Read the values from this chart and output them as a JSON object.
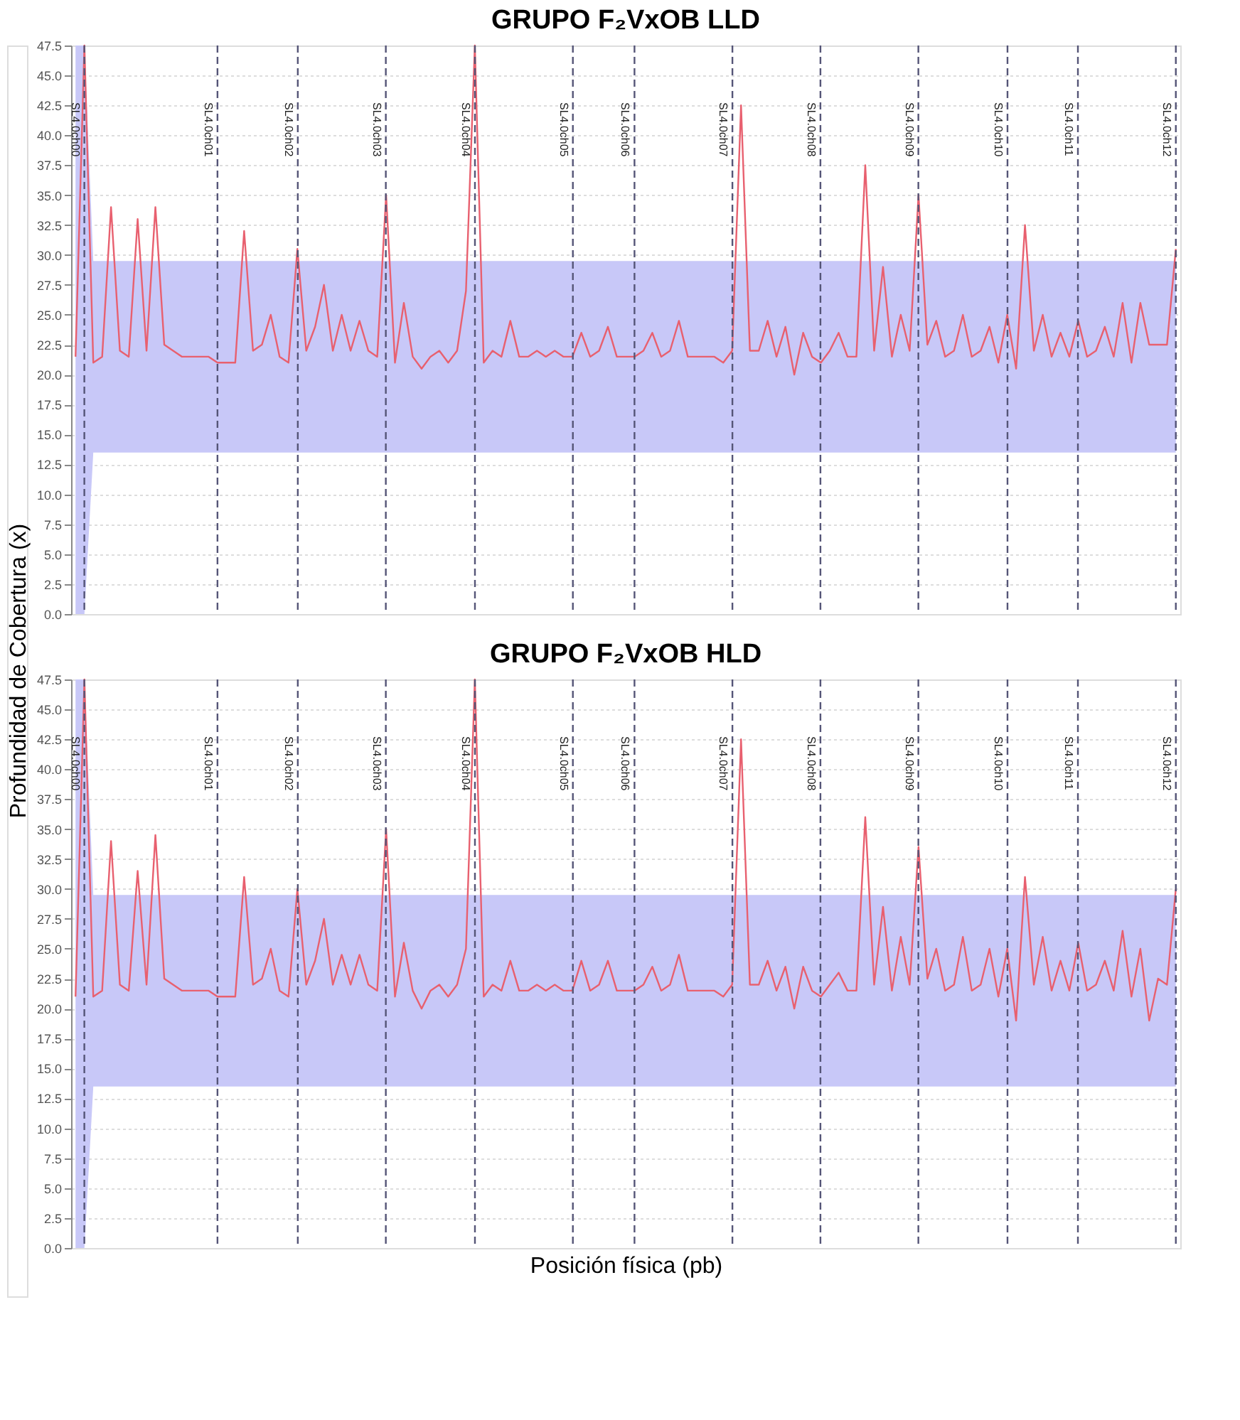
{
  "chart_data": [
    {
      "type": "line",
      "title": "GRUPO F₂VxOB LLD",
      "ylabel": "Profundidad de Cobertura (x)",
      "grid": "y",
      "tick_labels": "y",
      "categories": [
        null,
        null,
        null,
        null,
        null,
        null,
        null,
        null,
        null,
        null,
        null,
        null,
        null,
        null,
        null,
        null,
        null,
        null,
        null,
        null,
        null,
        null,
        null,
        null,
        null,
        null,
        null,
        null,
        null,
        null,
        null,
        null,
        null,
        null,
        null,
        null,
        null,
        null,
        null,
        null,
        null,
        null,
        null,
        null,
        null,
        null,
        null,
        null,
        null,
        null,
        null,
        null,
        null,
        null,
        null,
        null,
        null,
        null,
        null,
        null,
        null,
        null,
        null,
        null,
        null,
        null,
        null,
        null,
        null,
        null,
        null,
        null,
        null,
        null,
        null,
        null,
        null,
        null,
        null,
        null,
        null,
        null,
        null,
        null,
        null,
        null,
        null,
        null,
        null,
        null,
        null,
        null,
        null,
        null,
        null,
        null,
        null,
        null,
        null,
        null,
        null,
        null,
        null,
        null,
        null,
        null,
        null,
        null,
        null,
        null,
        null,
        null,
        null,
        null,
        null,
        null,
        null,
        null,
        null,
        null,
        null,
        null,
        null,
        null,
        null
      ],
      "ylim": [
        0,
        47.5
      ],
      "yticks": [
        {
          "value": 0,
          "label": "0.0"
        },
        {
          "value": 2.5,
          "label": "2.5"
        },
        {
          "value": 5,
          "label": "5.0"
        },
        {
          "value": 7.5,
          "label": "7.5"
        },
        {
          "value": 10,
          "label": "10.0"
        },
        {
          "value": 12.5,
          "label": "12.5"
        },
        {
          "value": 15,
          "label": "15.0"
        },
        {
          "value": 17.5,
          "label": "17.5"
        },
        {
          "value": 20,
          "label": "20.0"
        },
        {
          "value": 22.5,
          "label": "22.5"
        },
        {
          "value": 25,
          "label": "25.0"
        },
        {
          "value": 27.5,
          "label": "27.5"
        },
        {
          "value": 30,
          "label": "30.0"
        },
        {
          "value": 32.5,
          "label": "32.5"
        },
        {
          "value": 35,
          "label": "35.0"
        },
        {
          "value": 37.5,
          "label": "37.5"
        },
        {
          "value": 40,
          "label": "40.0"
        },
        {
          "value": 42.5,
          "label": "42.5"
        },
        {
          "value": 45,
          "label": "45.0"
        },
        {
          "value": 47.5,
          "label": "47.5"
        }
      ],
      "series": [
        {
          "color": "#e8606f",
          "values": [
            21.5,
            47.5,
            21,
            21.5,
            34,
            22,
            21.5,
            33,
            22,
            34,
            22.5,
            22,
            21.5,
            21.5,
            21.5,
            21.5,
            21,
            21,
            21,
            32,
            22,
            22.5,
            25,
            21.5,
            21,
            30.5,
            22,
            24,
            27.5,
            22,
            25,
            22,
            24.5,
            22,
            21.5,
            35,
            21,
            26,
            21.5,
            20.5,
            21.5,
            22,
            21,
            22,
            27,
            47.5,
            21,
            22,
            21.5,
            24.5,
            21.5,
            21.5,
            22,
            21.5,
            22,
            21.5,
            21.5,
            23.5,
            21.5,
            22,
            24,
            21.5,
            21.5,
            21.5,
            22,
            23.5,
            21.5,
            22,
            24.5,
            21.5,
            21.5,
            21.5,
            21.5,
            21,
            22,
            42.5,
            22,
            22,
            24.5,
            21.5,
            24,
            20,
            23.5,
            21.5,
            21,
            22,
            23.5,
            21.5,
            21.5,
            37.5,
            22,
            29,
            21.5,
            25,
            22,
            35,
            22.5,
            24.5,
            21.5,
            22,
            25,
            21.5,
            22,
            24,
            21,
            25,
            20.5,
            32.5,
            22,
            25,
            21.5,
            23.5,
            21.5,
            24.5,
            21.5,
            22,
            24,
            21.5,
            26,
            21,
            26,
            22.5,
            22.5,
            22.5,
            30.5
          ],
          "upper": [
            47.5,
            47.5,
            29.5,
            29.5,
            29.5,
            29.5,
            29.5,
            29.5,
            29.5,
            29.5,
            29.5,
            29.5,
            29.5,
            29.5,
            29.5,
            29.5,
            29.5,
            29.5,
            29.5,
            29.5,
            29.5,
            29.5,
            29.5,
            29.5,
            29.5,
            29.5,
            29.5,
            29.5,
            29.5,
            29.5,
            29.5,
            29.5,
            29.5,
            29.5,
            29.5,
            29.5,
            29.5,
            29.5,
            29.5,
            29.5,
            29.5,
            29.5,
            29.5,
            29.5,
            29.5,
            29.5,
            29.5,
            29.5,
            29.5,
            29.5,
            29.5,
            29.5,
            29.5,
            29.5,
            29.5,
            29.5,
            29.5,
            29.5,
            29.5,
            29.5,
            29.5,
            29.5,
            29.5,
            29.5,
            29.5,
            29.5,
            29.5,
            29.5,
            29.5,
            29.5,
            29.5,
            29.5,
            29.5,
            29.5,
            29.5,
            29.5,
            29.5,
            29.5,
            29.5,
            29.5,
            29.5,
            29.5,
            29.5,
            29.5,
            29.5,
            29.5,
            29.5,
            29.5,
            29.5,
            29.5,
            29.5,
            29.5,
            29.5,
            29.5,
            29.5,
            29.5,
            29.5,
            29.5,
            29.5,
            29.5,
            29.5,
            29.5,
            29.5,
            29.5,
            29.5,
            29.5,
            29.5,
            29.5,
            29.5,
            29.5,
            29.5,
            29.5,
            29.5,
            29.5,
            29.5,
            29.5,
            29.5,
            29.5,
            29.5,
            29.5,
            29.5,
            29.5,
            29.5,
            29.5,
            29.5
          ],
          "lower": [
            0,
            0,
            13.5,
            13.5,
            13.5,
            13.5,
            13.5,
            13.5,
            13.5,
            13.5,
            13.5,
            13.5,
            13.5,
            13.5,
            13.5,
            13.5,
            13.5,
            13.5,
            13.5,
            13.5,
            13.5,
            13.5,
            13.5,
            13.5,
            13.5,
            13.5,
            13.5,
            13.5,
            13.5,
            13.5,
            13.5,
            13.5,
            13.5,
            13.5,
            13.5,
            13.5,
            13.5,
            13.5,
            13.5,
            13.5,
            13.5,
            13.5,
            13.5,
            13.5,
            13.5,
            13.5,
            13.5,
            13.5,
            13.5,
            13.5,
            13.5,
            13.5,
            13.5,
            13.5,
            13.5,
            13.5,
            13.5,
            13.5,
            13.5,
            13.5,
            13.5,
            13.5,
            13.5,
            13.5,
            13.5,
            13.5,
            13.5,
            13.5,
            13.5,
            13.5,
            13.5,
            13.5,
            13.5,
            13.5,
            13.5,
            13.5,
            13.5,
            13.5,
            13.5,
            13.5,
            13.5,
            13.5,
            13.5,
            13.5,
            13.5,
            13.5,
            13.5,
            13.5,
            13.5,
            13.5,
            13.5,
            13.5,
            13.5,
            13.5,
            13.5,
            13.5,
            13.5,
            13.5,
            13.5,
            13.5,
            13.5,
            13.5,
            13.5,
            13.5,
            13.5,
            13.5,
            13.5,
            13.5,
            13.5,
            13.5,
            13.5,
            13.5,
            13.5,
            13.5,
            13.5,
            13.5,
            13.5,
            13.5,
            13.5,
            13.5,
            13.5,
            13.5,
            13.5,
            13.5,
            13.5
          ]
        }
      ],
      "annotations": [
        "SL4.0ch00",
        "SL4.0ch01",
        "SL4.0ch02",
        "SL4.0ch03",
        "SL4.0ch04",
        "SL4.0ch05",
        "SL4.0ch06",
        "SL4.0ch07",
        "SL4.0ch08",
        "SL4.0ch09",
        "SL4.0ch10",
        "SL4.0ch11",
        "SL4.0ch12"
      ]
    },
    {
      "type": "line",
      "title": "GRUPO F₂VxOB HLD",
      "xlabel": "Posición física (pb)",
      "grid": "y",
      "tick_labels": "y",
      "categories": [
        null,
        null,
        null,
        null,
        null,
        null,
        null,
        null,
        null,
        null,
        null,
        null,
        null,
        null,
        null,
        null,
        null,
        null,
        null,
        null,
        null,
        null,
        null,
        null,
        null,
        null,
        null,
        null,
        null,
        null,
        null,
        null,
        null,
        null,
        null,
        null,
        null,
        null,
        null,
        null,
        null,
        null,
        null,
        null,
        null,
        null,
        null,
        null,
        null,
        null,
        null,
        null,
        null,
        null,
        null,
        null,
        null,
        null,
        null,
        null,
        null,
        null,
        null,
        null,
        null,
        null,
        null,
        null,
        null,
        null,
        null,
        null,
        null,
        null,
        null,
        null,
        null,
        null,
        null,
        null,
        null,
        null,
        null,
        null,
        null,
        null,
        null,
        null,
        null,
        null,
        null,
        null,
        null,
        null,
        null,
        null,
        null,
        null,
        null,
        null,
        null,
        null,
        null,
        null,
        null,
        null,
        null,
        null,
        null,
        null,
        null,
        null,
        null,
        null,
        null,
        null,
        null,
        null,
        null,
        null,
        null,
        null,
        null,
        null,
        null
      ],
      "ylim": [
        0,
        47.5
      ],
      "yticks": [
        {
          "value": 0,
          "label": "0.0"
        },
        {
          "value": 2.5,
          "label": "2.5"
        },
        {
          "value": 5,
          "label": "5.0"
        },
        {
          "value": 7.5,
          "label": "7.5"
        },
        {
          "value": 10,
          "label": "10.0"
        },
        {
          "value": 12.5,
          "label": "12.5"
        },
        {
          "value": 15,
          "label": "15.0"
        },
        {
          "value": 17.5,
          "label": "17.5"
        },
        {
          "value": 20,
          "label": "20.0"
        },
        {
          "value": 22.5,
          "label": "22.5"
        },
        {
          "value": 25,
          "label": "25.0"
        },
        {
          "value": 27.5,
          "label": "27.5"
        },
        {
          "value": 30,
          "label": "30.0"
        },
        {
          "value": 32.5,
          "label": "32.5"
        },
        {
          "value": 35,
          "label": "35.0"
        },
        {
          "value": 37.5,
          "label": "37.5"
        },
        {
          "value": 40,
          "label": "40.0"
        },
        {
          "value": 42.5,
          "label": "42.5"
        },
        {
          "value": 45,
          "label": "45.0"
        },
        {
          "value": 47.5,
          "label": "47.5"
        }
      ],
      "series": [
        {
          "color": "#e8606f",
          "values": [
            21,
            47.5,
            21,
            21.5,
            34,
            22,
            21.5,
            31.5,
            22,
            34.5,
            22.5,
            22,
            21.5,
            21.5,
            21.5,
            21.5,
            21,
            21,
            21,
            31,
            22,
            22.5,
            25,
            21.5,
            21,
            30,
            22,
            24,
            27.5,
            22,
            24.5,
            22,
            24.5,
            22,
            21.5,
            35,
            21,
            25.5,
            21.5,
            20,
            21.5,
            22,
            21,
            22,
            25,
            47.5,
            21,
            22,
            21.5,
            24,
            21.5,
            21.5,
            22,
            21.5,
            22,
            21.5,
            21.5,
            24,
            21.5,
            22,
            24,
            21.5,
            21.5,
            21.5,
            22,
            23.5,
            21.5,
            22,
            24.5,
            21.5,
            21.5,
            21.5,
            21.5,
            21,
            22,
            42.5,
            22,
            22,
            24,
            21.5,
            23.5,
            20,
            23.5,
            21.5,
            21,
            22,
            23,
            21.5,
            21.5,
            36,
            22,
            28.5,
            21.5,
            26,
            22,
            33.5,
            22.5,
            25,
            21.5,
            22,
            26,
            21.5,
            22,
            25,
            21,
            25,
            19,
            31,
            22,
            26,
            21.5,
            24,
            21.5,
            25.5,
            21.5,
            22,
            24,
            21.5,
            26.5,
            21,
            25,
            19,
            22.5,
            22,
            30
          ],
          "upper": [
            47.5,
            47.5,
            29.5,
            29.5,
            29.5,
            29.5,
            29.5,
            29.5,
            29.5,
            29.5,
            29.5,
            29.5,
            29.5,
            29.5,
            29.5,
            29.5,
            29.5,
            29.5,
            29.5,
            29.5,
            29.5,
            29.5,
            29.5,
            29.5,
            29.5,
            29.5,
            29.5,
            29.5,
            29.5,
            29.5,
            29.5,
            29.5,
            29.5,
            29.5,
            29.5,
            29.5,
            29.5,
            29.5,
            29.5,
            29.5,
            29.5,
            29.5,
            29.5,
            29.5,
            29.5,
            29.5,
            29.5,
            29.5,
            29.5,
            29.5,
            29.5,
            29.5,
            29.5,
            29.5,
            29.5,
            29.5,
            29.5,
            29.5,
            29.5,
            29.5,
            29.5,
            29.5,
            29.5,
            29.5,
            29.5,
            29.5,
            29.5,
            29.5,
            29.5,
            29.5,
            29.5,
            29.5,
            29.5,
            29.5,
            29.5,
            29.5,
            29.5,
            29.5,
            29.5,
            29.5,
            29.5,
            29.5,
            29.5,
            29.5,
            29.5,
            29.5,
            29.5,
            29.5,
            29.5,
            29.5,
            29.5,
            29.5,
            29.5,
            29.5,
            29.5,
            29.5,
            29.5,
            29.5,
            29.5,
            29.5,
            29.5,
            29.5,
            29.5,
            29.5,
            29.5,
            29.5,
            29.5,
            29.5,
            29.5,
            29.5,
            29.5,
            29.5,
            29.5,
            29.5,
            29.5,
            29.5,
            29.5,
            29.5,
            29.5,
            29.5,
            29.5,
            29.5,
            29.5,
            29.5,
            29.5
          ],
          "lower": [
            0,
            0,
            13.5,
            13.5,
            13.5,
            13.5,
            13.5,
            13.5,
            13.5,
            13.5,
            13.5,
            13.5,
            13.5,
            13.5,
            13.5,
            13.5,
            13.5,
            13.5,
            13.5,
            13.5,
            13.5,
            13.5,
            13.5,
            13.5,
            13.5,
            13.5,
            13.5,
            13.5,
            13.5,
            13.5,
            13.5,
            13.5,
            13.5,
            13.5,
            13.5,
            13.5,
            13.5,
            13.5,
            13.5,
            13.5,
            13.5,
            13.5,
            13.5,
            13.5,
            13.5,
            13.5,
            13.5,
            13.5,
            13.5,
            13.5,
            13.5,
            13.5,
            13.5,
            13.5,
            13.5,
            13.5,
            13.5,
            13.5,
            13.5,
            13.5,
            13.5,
            13.5,
            13.5,
            13.5,
            13.5,
            13.5,
            13.5,
            13.5,
            13.5,
            13.5,
            13.5,
            13.5,
            13.5,
            13.5,
            13.5,
            13.5,
            13.5,
            13.5,
            13.5,
            13.5,
            13.5,
            13.5,
            13.5,
            13.5,
            13.5,
            13.5,
            13.5,
            13.5,
            13.5,
            13.5,
            13.5,
            13.5,
            13.5,
            13.5,
            13.5,
            13.5,
            13.5,
            13.5,
            13.5,
            13.5,
            13.5,
            13.5,
            13.5,
            13.5,
            13.5,
            13.5,
            13.5,
            13.5,
            13.5,
            13.5,
            13.5,
            13.5,
            13.5,
            13.5,
            13.5,
            13.5,
            13.5,
            13.5,
            13.5,
            13.5,
            13.5,
            13.5,
            13.5,
            13.5,
            13.5
          ]
        }
      ],
      "annotations": [
        "SL4.0ch00",
        "SL4.0ch01",
        "SL4.0ch02",
        "SL4.0ch03",
        "SL4.0ch04",
        "SL4.0ch05",
        "SL4.0ch06",
        "SL4.0ch07",
        "SL4.0ch08",
        "SL4.0ch09",
        "SL4.0ch10",
        "SL4.0ch11",
        "SL4.0ch12"
      ]
    }
  ]
}
